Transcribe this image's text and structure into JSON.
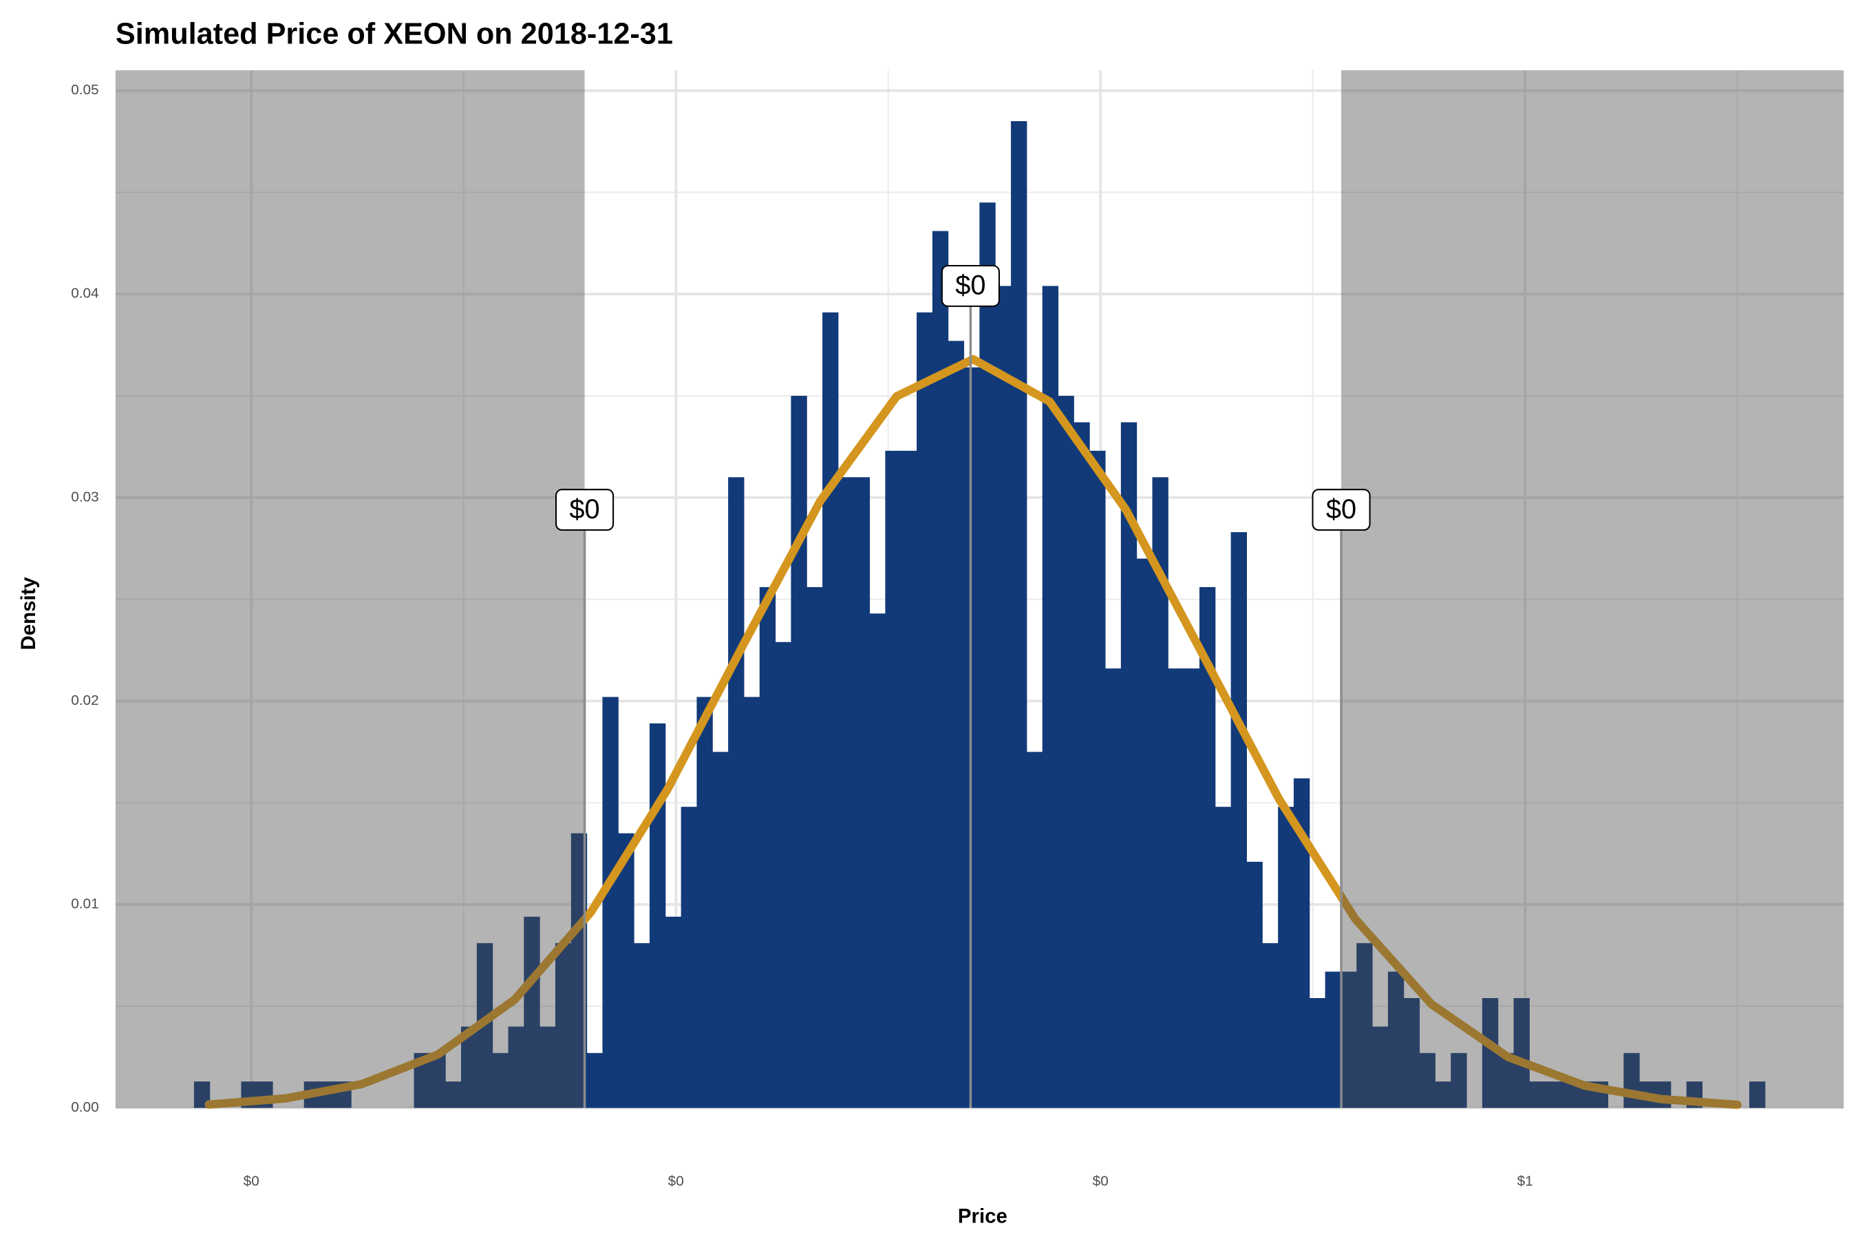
{
  "chart_data": {
    "type": "histogram",
    "title": "Simulated Price of XEON on 2018-12-31",
    "x_label": "Price",
    "y_label": "Density",
    "bins": [
      0.2865,
      0.2902,
      0.2939,
      0.2976,
      0.3013,
      0.305,
      0.3087,
      0.3124,
      0.3161,
      0.3198,
      0.3235,
      0.3272,
      0.3309,
      0.3346,
      0.3383,
      0.342,
      0.3457,
      0.3494,
      0.3531,
      0.3568,
      0.3605,
      0.3642,
      0.3679,
      0.3716,
      0.3753,
      0.379,
      0.3827,
      0.3864,
      0.3901,
      0.3938,
      0.3975,
      0.4012,
      0.4049,
      0.4086,
      0.4123,
      0.416,
      0.4197,
      0.4234,
      0.4271,
      0.4308,
      0.4345,
      0.4382,
      0.4419,
      0.4456,
      0.4493,
      0.453,
      0.4567,
      0.4604,
      0.4641,
      0.4678,
      0.4715,
      0.4752,
      0.4789,
      0.4826,
      0.4863,
      0.49,
      0.4937,
      0.4974,
      0.5011,
      0.5048,
      0.5085,
      0.5122,
      0.5159,
      0.5196,
      0.5233,
      0.527,
      0.5307,
      0.5344,
      0.5381,
      0.5418,
      0.5455,
      0.5492,
      0.5529,
      0.5566,
      0.5603,
      0.564,
      0.5677,
      0.5714,
      0.5751,
      0.5788,
      0.5825,
      0.5862,
      0.5899,
      0.5936,
      0.5973,
      0.601,
      0.6047,
      0.6084,
      0.6121,
      0.6158,
      0.6195,
      0.6232,
      0.6269,
      0.6306,
      0.6343,
      0.638,
      0.6417,
      0.6454,
      0.6491,
      0.6528,
      0.6565
    ],
    "values": [
      0.0013,
      0,
      0,
      0.0013,
      0.0013,
      0,
      0,
      0.0013,
      0.0013,
      0.0013,
      0,
      0,
      0,
      0,
      0.0027,
      0.0027,
      0.0013,
      0.004,
      0.0081,
      0.0027,
      0.004,
      0.0094,
      0.004,
      0.0081,
      0.0135,
      0.0027,
      0.0202,
      0.0135,
      0.0081,
      0.0189,
      0.0094,
      0.0148,
      0.0202,
      0.0175,
      0.031,
      0.0202,
      0.0256,
      0.0229,
      0.035,
      0.0256,
      0.0391,
      0.031,
      0.031,
      0.0243,
      0.0323,
      0.0323,
      0.0391,
      0.0431,
      0.0377,
      0.0364,
      0.0445,
      0.0404,
      0.0485,
      0.0175,
      0.0404,
      0.035,
      0.0337,
      0.0323,
      0.0216,
      0.0337,
      0.027,
      0.031,
      0.0216,
      0.0216,
      0.0256,
      0.0148,
      0.0283,
      0.0121,
      0.0081,
      0.0148,
      0.0162,
      0.0054,
      0.0067,
      0.0067,
      0.0081,
      0.004,
      0.0067,
      0.0054,
      0.0027,
      0.0013,
      0.0027,
      0,
      0.0054,
      0.0027,
      0.0054,
      0.0013,
      0.0013,
      0.0013,
      0.0013,
      0.0013,
      0,
      0.0027,
      0.0013,
      0.0013,
      0,
      0.0013,
      0,
      0,
      0,
      0.0013
    ],
    "color": "#123a78",
    "curve": {
      "color": "#d4961e",
      "x": [
        0.29,
        0.308,
        0.326,
        0.344,
        0.362,
        0.38,
        0.398,
        0.416,
        0.434,
        0.452,
        0.47,
        0.488,
        0.506,
        0.524,
        0.542,
        0.56,
        0.578,
        0.596,
        0.614,
        0.632,
        0.65
      ],
      "values": [
        0.000167,
        0.000466,
        0.00117,
        0.00263,
        0.00532,
        0.00963,
        0.01565,
        0.02282,
        0.02983,
        0.03498,
        0.0368,
        0.03472,
        0.0294,
        0.02232,
        0.0152,
        0.00929,
        0.00509,
        0.0025,
        0.0011,
        0.000436,
        0.000155
      ]
    },
    "annotations": {
      "values": [
        0.3785,
        0.4694,
        0.5567
      ],
      "value_labels": [
        "$0",
        "$0",
        "$0"
      ],
      "yend": [
        0.0294,
        0.0404,
        0.0294
      ]
    },
    "shade_color": "#4d4d4d",
    "xlim": [
      0.26802,
      0.67504
    ],
    "ylim": [
      0,
      0.051
    ],
    "xticks": [
      {
        "value": 0.3,
        "label": "$0"
      },
      {
        "value": 0.4,
        "label": "$0"
      },
      {
        "value": 0.5,
        "label": "$0"
      },
      {
        "value": 0.6,
        "label": "$1"
      }
    ],
    "x_minor_ticks": [
      0.35,
      0.45,
      0.55,
      0.65
    ],
    "yticks": [
      {
        "value": 0,
        "label": "0.00"
      },
      0.01,
      0.02,
      0.03,
      0.04,
      0.05
    ],
    "y_minor_ticks": [
      0.005,
      0.015,
      0.025,
      0.035,
      0.045
    ],
    "grid": true
  }
}
